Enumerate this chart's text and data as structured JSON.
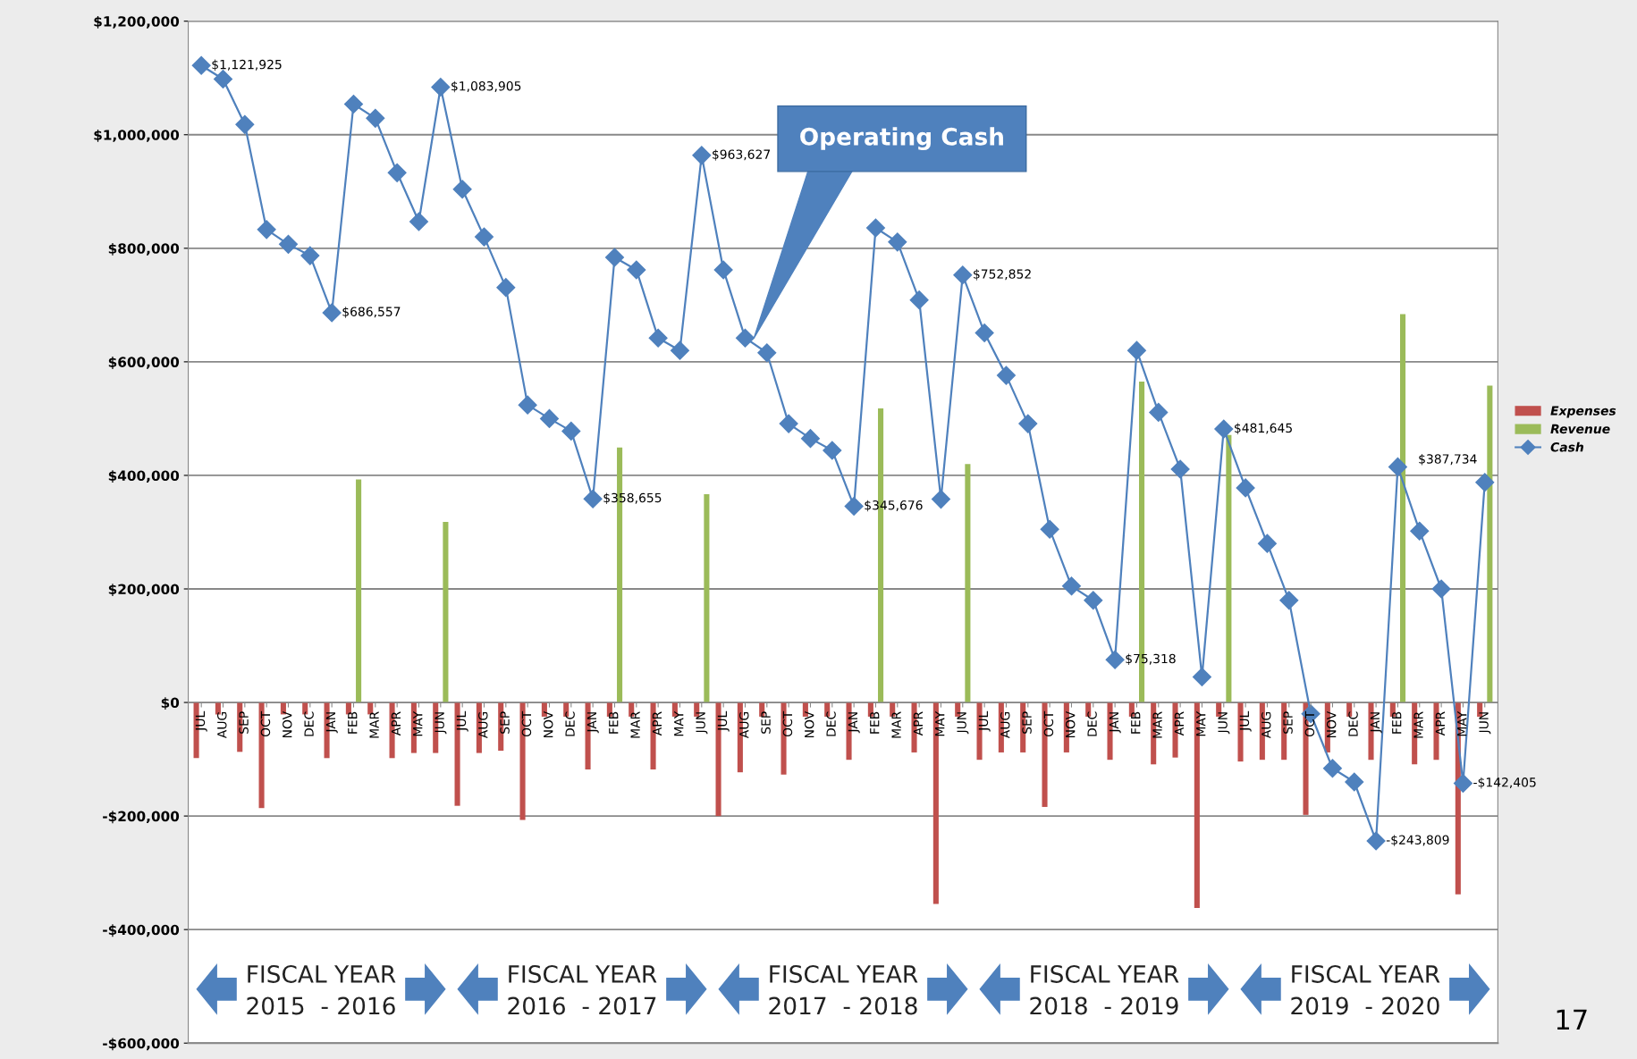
{
  "chart_data": {
    "type": "bar",
    "categories": [
      "JUL",
      "AUG",
      "SEP",
      "OCT",
      "NOV",
      "DEC",
      "JAN",
      "FEB",
      "MAR",
      "APR",
      "MAY",
      "JUN",
      "JUL",
      "AUG",
      "SEP",
      "OCT",
      "NOV",
      "DEC",
      "JAN",
      "FEB",
      "MAR",
      "APR",
      "MAY",
      "JUN",
      "JUL",
      "AUG",
      "SEP",
      "OCT",
      "NOV",
      "DEC",
      "JAN",
      "FEB",
      "MAR",
      "APR",
      "MAY",
      "JUN",
      "JUL",
      "AUG",
      "SEP",
      "OCT",
      "NOV",
      "DEC",
      "JAN",
      "FEB",
      "MAR",
      "APR",
      "MAY",
      "JUN",
      "JUL",
      "AUG",
      "SEP",
      "OCT",
      "NOV",
      "DEC",
      "JAN",
      "FEB",
      "MAR",
      "APR",
      "MAY",
      "JUN"
    ],
    "series": [
      {
        "name": "Expenses",
        "color": "#c0504d",
        "values": [
          -98000,
          -21000,
          -87000,
          -186000,
          -21000,
          -21000,
          -98000,
          -21000,
          -21000,
          -98000,
          -89000,
          -89000,
          -182000,
          -89000,
          -85000,
          -207000,
          -25000,
          -25000,
          -118000,
          -25000,
          -25000,
          -118000,
          -25000,
          -25000,
          -200000,
          -123000,
          -25000,
          -127000,
          -25000,
          -25000,
          -101000,
          -25000,
          -25000,
          -88000,
          -355000,
          -25000,
          -101000,
          -88000,
          -88000,
          -184000,
          -88000,
          -25000,
          -101000,
          -25000,
          -109000,
          -97000,
          -362000,
          -25000,
          -104000,
          -101000,
          -101000,
          -198000,
          -88000,
          -25000,
          -101000,
          -25000,
          -109000,
          -101000,
          -338000,
          -25000
        ]
      },
      {
        "name": "Revenue",
        "color": "#9bbb59",
        "values": [
          null,
          null,
          null,
          null,
          null,
          null,
          null,
          393000,
          null,
          null,
          null,
          318000,
          null,
          null,
          null,
          null,
          null,
          null,
          null,
          449000,
          null,
          null,
          null,
          367000,
          null,
          null,
          null,
          null,
          null,
          null,
          null,
          518000,
          null,
          null,
          null,
          420000,
          null,
          null,
          null,
          null,
          null,
          null,
          null,
          565000,
          null,
          null,
          null,
          471000,
          null,
          null,
          null,
          null,
          null,
          null,
          null,
          684000,
          null,
          null,
          null,
          558000
        ]
      },
      {
        "name": "Cash",
        "type": "line",
        "color": "#4f81bd",
        "marker": "diamond",
        "line_style": "solid",
        "values": [
          1121925,
          1098000,
          1018000,
          833000,
          807000,
          787000,
          686557,
          1054000,
          1029000,
          933000,
          847000,
          1083905,
          904000,
          820000,
          731000,
          524000,
          500000,
          478000,
          358655,
          784000,
          762000,
          642000,
          620000,
          963627,
          762000,
          642000,
          616000,
          491000,
          465000,
          444000,
          345676,
          836000,
          811000,
          709000,
          358000,
          752852,
          651000,
          576000,
          491000,
          305000,
          205000,
          180000,
          75318,
          620000,
          511000,
          411000,
          45000,
          481645,
          378000,
          280000,
          180000,
          -20000,
          -116000,
          -140000,
          -243809,
          415000,
          302000,
          200000,
          -142405,
          387734
        ],
        "value_labels": [
          "$1,121,925",
          null,
          null,
          null,
          null,
          null,
          "$686,557",
          null,
          null,
          null,
          null,
          "$1,083,905",
          null,
          null,
          null,
          null,
          null,
          null,
          "$358,655",
          null,
          null,
          null,
          null,
          "$963,627",
          null,
          null,
          null,
          null,
          null,
          null,
          "$345,676",
          null,
          null,
          null,
          null,
          "$752,852",
          null,
          null,
          null,
          null,
          null,
          null,
          "$75,318",
          null,
          null,
          null,
          null,
          "$481,645",
          null,
          null,
          null,
          null,
          null,
          null,
          "-$243,809",
          null,
          null,
          null,
          "-$142,405",
          "$387,734"
        ]
      }
    ],
    "ylim": [
      -600000,
      1200000
    ],
    "yticks": [
      {
        "value": -600000,
        "label": "-$600,000"
      },
      {
        "value": -400000,
        "label": "-$400,000"
      },
      {
        "value": -200000,
        "label": "-$200,000"
      },
      {
        "value": 0,
        "label": "$0"
      },
      {
        "value": 200000,
        "label": "$200,000"
      },
      {
        "value": 400000,
        "label": "$400,000"
      },
      {
        "value": 600000,
        "label": "$600,000"
      },
      {
        "value": 800000,
        "label": "$800,000"
      },
      {
        "value": 1000000,
        "label": "$1,000,000"
      },
      {
        "value": 1200000,
        "label": "$1,200,000"
      }
    ],
    "grid": "y",
    "legend": "right",
    "annotations": [
      "Operating Cash",
      "FISCAL YEAR\n2015  - 2016",
      "FISCAL YEAR\n2016  - 2017",
      "FISCAL YEAR\n2017  - 2018",
      "FISCAL YEAR\n2018  - 2019",
      "FISCAL YEAR\n2019  - 2020",
      "17"
    ]
  }
}
